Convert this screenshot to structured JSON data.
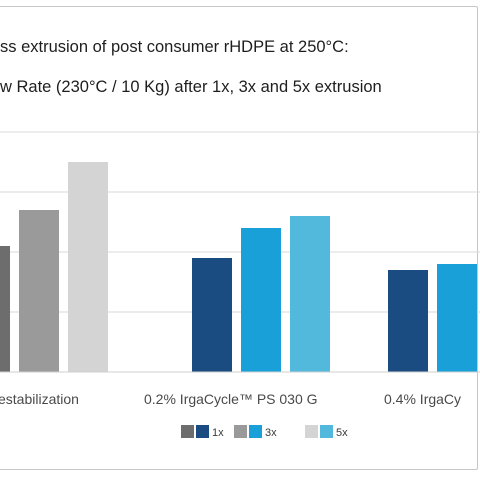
{
  "chart_data": {
    "type": "bar",
    "title": "ss extrusion of post consumer rHDPE at 250°C:",
    "subtitle": "w Rate (230°C / 10 Kg) after 1x, 3x and 5x extrusion",
    "categories": [
      "estabilization",
      "0.2% IrgaCycle™ PS 030 G",
      "0.4% IrgaCy"
    ],
    "series": [
      {
        "name": "1x",
        "values": [
          21,
          19,
          17
        ]
      },
      {
        "name": "3x",
        "values": [
          27,
          24,
          18
        ]
      },
      {
        "name": "5x",
        "values": [
          35,
          26,
          null
        ]
      }
    ],
    "ylim": [
      0,
      40
    ],
    "grid": true,
    "legend": "bottom-center",
    "colors": {
      "no_stab": [
        "#6d6d6d",
        "#9a9a9a",
        "#d4d4d4"
      ],
      "stab": [
        "#1a4c82",
        "#1aa0d8",
        "#52b8dc"
      ],
      "grid": "#d9d9d9"
    }
  }
}
